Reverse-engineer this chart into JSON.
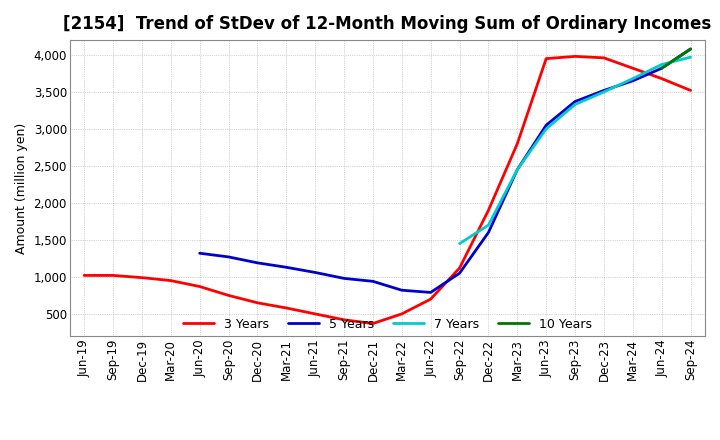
{
  "title": "[2154]  Trend of StDev of 12-Month Moving Sum of Ordinary Incomes",
  "ylabel": "Amount (million yen)",
  "title_fontsize": 12,
  "label_fontsize": 9,
  "tick_fontsize": 8.5,
  "ylim": [
    200,
    4200
  ],
  "yticks": [
    500,
    1000,
    1500,
    2000,
    2500,
    3000,
    3500,
    4000
  ],
  "background_color": "#ffffff",
  "legend": [
    "3 Years",
    "5 Years",
    "7 Years",
    "10 Years"
  ],
  "line_colors": [
    "#ff0000",
    "#0000cc",
    "#00cccc",
    "#007700"
  ],
  "x_labels": [
    "Jun-19",
    "Sep-19",
    "Dec-19",
    "Mar-20",
    "Jun-20",
    "Sep-20",
    "Dec-20",
    "Mar-21",
    "Jun-21",
    "Sep-21",
    "Dec-21",
    "Mar-22",
    "Jun-22",
    "Sep-22",
    "Dec-22",
    "Mar-23",
    "Jun-23",
    "Sep-23",
    "Dec-23",
    "Mar-24",
    "Jun-24",
    "Sep-24"
  ],
  "series_3y": [
    1020,
    1020,
    990,
    950,
    870,
    750,
    650,
    580,
    500,
    420,
    370,
    500,
    700,
    1120,
    1900,
    2800,
    3950,
    3980,
    3960,
    3820,
    3680,
    3520
  ],
  "series_5y": [
    null,
    null,
    null,
    null,
    1320,
    1270,
    1190,
    1130,
    1060,
    980,
    940,
    820,
    790,
    1050,
    1600,
    2450,
    3050,
    3370,
    3520,
    3650,
    3820,
    4080
  ],
  "series_7y": [
    null,
    null,
    null,
    null,
    null,
    null,
    null,
    null,
    null,
    null,
    null,
    null,
    null,
    1450,
    1700,
    2450,
    3000,
    3330,
    3500,
    3680,
    3870,
    3970
  ],
  "series_10y": [
    null,
    null,
    null,
    null,
    null,
    null,
    null,
    null,
    null,
    null,
    null,
    null,
    null,
    null,
    null,
    null,
    null,
    null,
    null,
    null,
    3820,
    4080
  ]
}
